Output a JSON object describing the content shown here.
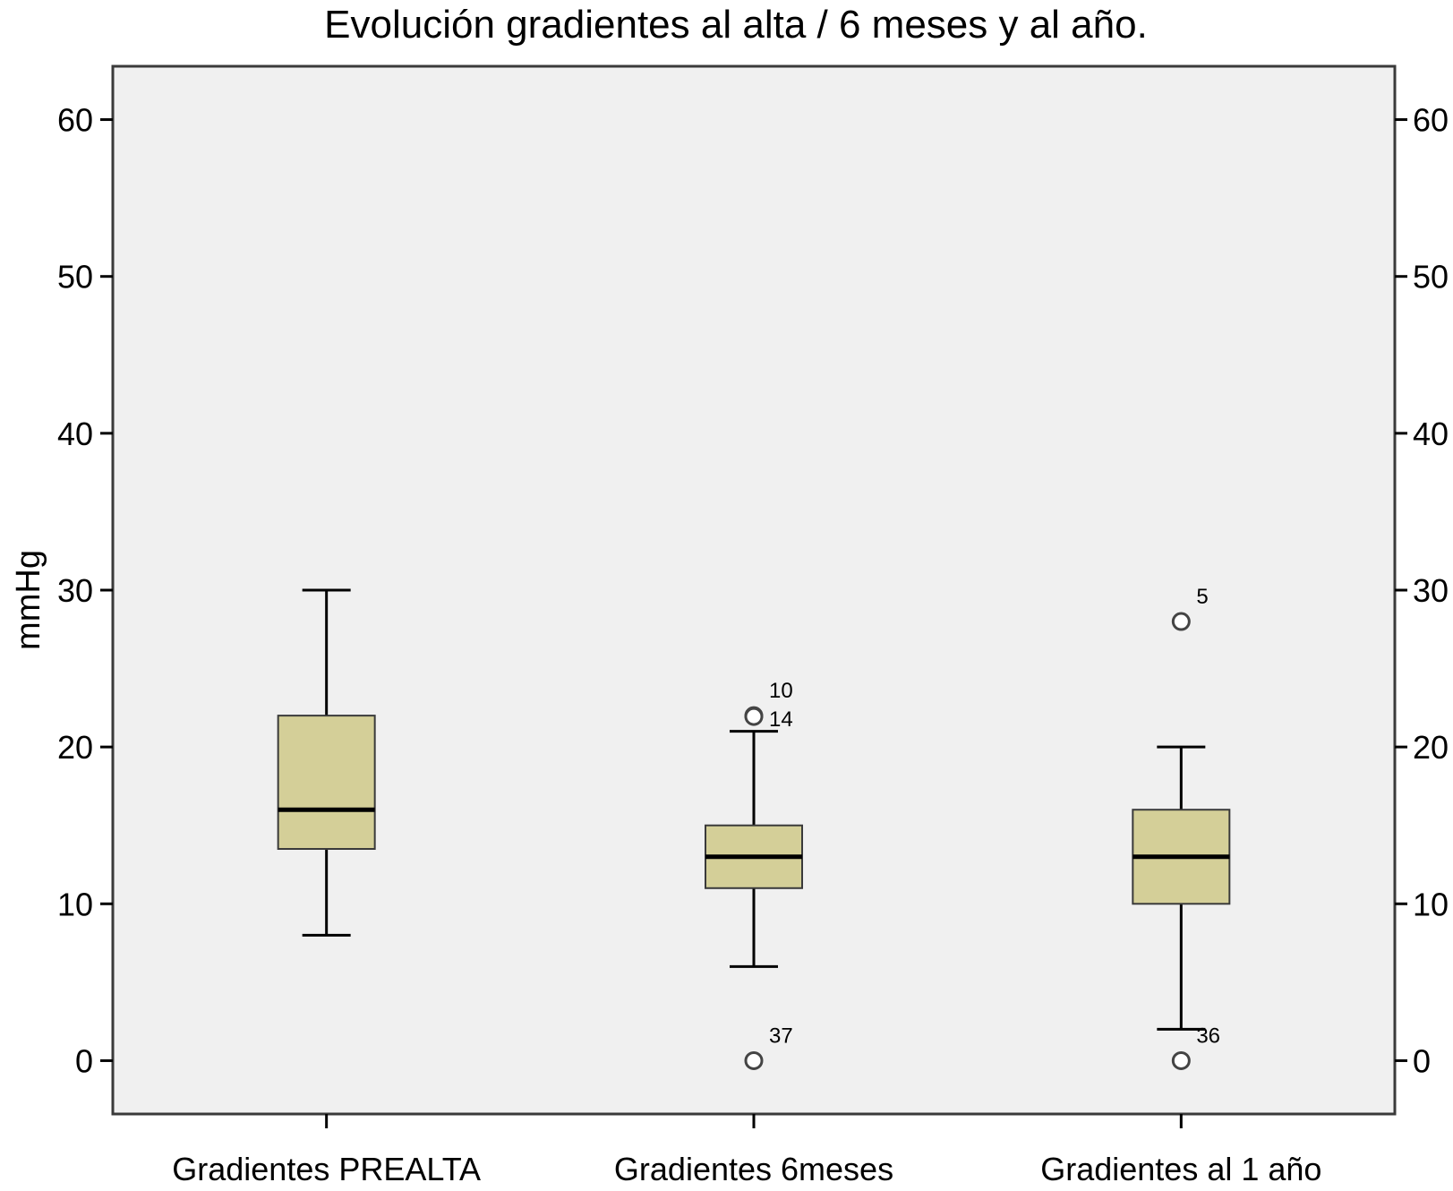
{
  "chart_data": {
    "type": "boxplot",
    "title": "Evolución gradientes al alta / 6 meses y al año.",
    "xlabel": "",
    "ylabel": "mmHg",
    "ylim": [
      -3.4,
      63.4
    ],
    "yticks": [
      "0",
      "10",
      "20",
      "30",
      "40",
      "50",
      "60"
    ],
    "grid": false,
    "legend": "none",
    "colors": {
      "plot_bg": "#f0f0f0",
      "box_fill": "#d4cf98",
      "line": "#000000",
      "outlier_fill": "#ffffff"
    },
    "categories": [
      "Gradientes PREALTA",
      "Gradientes 6meses",
      "Gradientes al 1 año"
    ],
    "boxes": [
      {
        "category": "Gradientes PREALTA",
        "whisker_low": 8,
        "q1": 13.5,
        "median": 16,
        "q3": 22,
        "whisker_high": 30,
        "outliers": []
      },
      {
        "category": "Gradientes 6meses",
        "whisker_low": 6,
        "q1": 11,
        "median": 13,
        "q3": 15,
        "whisker_high": 21,
        "outliers": [
          {
            "value": 22,
            "label": "10"
          },
          {
            "value": 22,
            "label": "14"
          },
          {
            "value": 0,
            "label": "37"
          }
        ]
      },
      {
        "category": "Gradientes al 1 año",
        "whisker_low": 2,
        "q1": 10,
        "median": 13,
        "q3": 16,
        "whisker_high": 20,
        "outliers": [
          {
            "value": 28,
            "label": "5"
          },
          {
            "value": 0,
            "label": "36"
          }
        ]
      }
    ]
  }
}
